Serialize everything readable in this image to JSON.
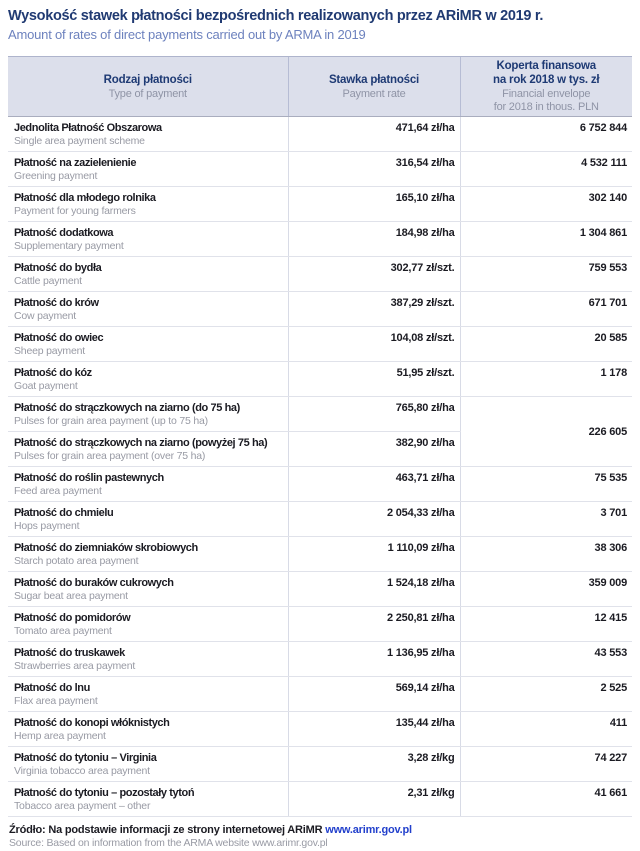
{
  "title": {
    "pl": "Wysokość stawek płatności bezpośrednich realizowanych przez ARiMR w 2019 r.",
    "en": "Amount of rates of direct payments carried out by ARMA in 2019"
  },
  "colors": {
    "title_navy": "#203a72",
    "subtitle_blue": "#6d82be",
    "header_background": "#dcdfeb",
    "row_text_dark": "#1b1b22",
    "row_text_gray": "#989aa4",
    "link_blue": "#2240cc"
  },
  "table": {
    "headers": [
      {
        "pl": "Rodzaj płatności",
        "en": "Type of payment"
      },
      {
        "pl": "Stawka płatności",
        "en": "Payment rate"
      },
      {
        "pl": "Koperta finansowa\nna rok 2018 w tys. zł",
        "en": "Financial envelope\nfor 2018 in thous. PLN"
      }
    ],
    "rows": [
      {
        "pl": "Jednolita Płatność Obszarowa",
        "en": "Single area payment scheme",
        "rate": "471,64 zł/ha",
        "envelope": "6 752 844"
      },
      {
        "pl": "Płatność na zazielenienie",
        "en": "Greening payment",
        "rate": "316,54 zł/ha",
        "envelope": "4 532 111"
      },
      {
        "pl": "Płatność dla młodego rolnika",
        "en": "Payment for young farmers",
        "rate": "165,10 zł/ha",
        "envelope": "302 140"
      },
      {
        "pl": "Płatność dodatkowa",
        "en": "Supplementary payment",
        "rate": "184,98 zł/ha",
        "envelope": "1 304 861"
      },
      {
        "pl": "Płatność do bydła",
        "en": "Cattle payment",
        "rate": "302,77 zł/szt.",
        "envelope": "759 553"
      },
      {
        "pl": "Płatność do krów",
        "en": "Cow payment",
        "rate": "387,29 zł/szt.",
        "envelope": "671 701"
      },
      {
        "pl": "Płatność do owiec",
        "en": "Sheep payment",
        "rate": "104,08 zł/szt.",
        "envelope": "20 585"
      },
      {
        "pl": "Płatność do kóz",
        "en": "Goat payment",
        "rate": "51,95 zł/szt.",
        "envelope": "1 178"
      },
      {
        "pl": "Płatność do strączkowych na ziarno (do 75 ha)",
        "en": "Pulses for grain area payment (up to 75 ha)",
        "rate": "765,80 zł/ha",
        "envelope": "226 605",
        "envelope_rowspan": 2
      },
      {
        "pl": "Płatność do strączkowych na ziarno (powyżej 75 ha)",
        "en": "Pulses for grain area payment (over 75 ha)",
        "rate": "382,90 zł/ha",
        "envelope": null,
        "envelope_merged": true
      },
      {
        "pl": "Płatność do roślin pastewnych",
        "en": "Feed area payment",
        "rate": "463,71 zł/ha",
        "envelope": "75 535"
      },
      {
        "pl": "Płatność do chmielu",
        "en": "Hops payment",
        "rate": "2 054,33 zł/ha",
        "envelope": "3 701"
      },
      {
        "pl": "Płatność do ziemniaków skrobiowych",
        "en": "Starch potato area payment",
        "rate": "1 110,09 zł/ha",
        "envelope": "38 306"
      },
      {
        "pl": "Płatność do buraków cukrowych",
        "en": "Sugar beat area payment",
        "rate": "1 524,18 zł/ha",
        "envelope": "359 009"
      },
      {
        "pl": "Płatność do pomidorów",
        "en": "Tomato area payment",
        "rate": "2 250,81 zł/ha",
        "envelope": "12 415"
      },
      {
        "pl": "Płatność do truskawek",
        "en": "Strawberries area payment",
        "rate": "1 136,95 zł/ha",
        "envelope": "43 553"
      },
      {
        "pl": "Płatność do lnu",
        "en": "Flax area payment",
        "rate": "569,14 zł/ha",
        "envelope": "2 525"
      },
      {
        "pl": "Płatność do konopi włóknistych",
        "en": "Hemp area payment",
        "rate": "135,44 zł/ha",
        "envelope": "411"
      },
      {
        "pl": "Płatność do tytoniu – Virginia",
        "en": "Virginia tobacco area payment",
        "rate": "3,28 zł/kg",
        "envelope": "74 227"
      },
      {
        "pl": "Płatność do tytoniu – pozostały tytoń",
        "en": "Tobacco area payment – other",
        "rate": "2,31 zł/kg",
        "envelope": "41 661"
      }
    ]
  },
  "footer": {
    "source_pl": "Źródło: Na podstawie informacji ze strony internetowej ARiMR",
    "link": "www.arimr.gov.pl",
    "source_en": "Source: Based on information from the ARMA website www.arimr.gov.pl"
  }
}
